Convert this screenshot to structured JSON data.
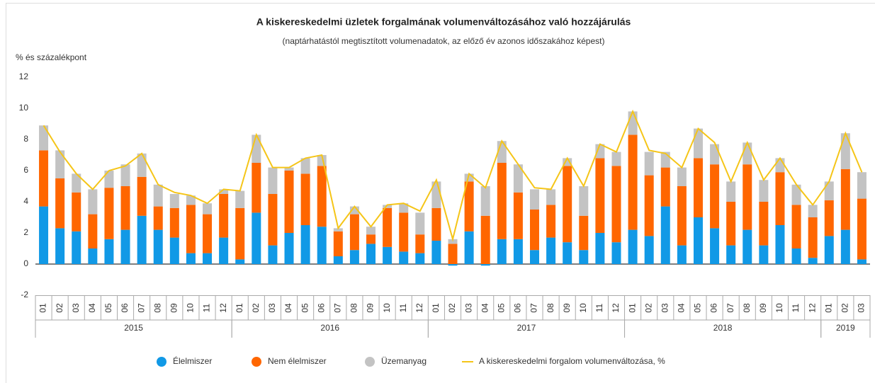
{
  "chart_data": {
    "type": "stacked-bar-line",
    "title": "A kiskereskedelmi üzletek forgalmának volumenváltozásához való hozzájárulás",
    "subtitle": "(naptárhatástól megtisztított volumenadatok, az előző év azonos időszakához képest)",
    "y_label": "% és százalékpont",
    "years": [
      {
        "label": "2015",
        "months": [
          "01",
          "02",
          "03",
          "04",
          "05",
          "06",
          "07",
          "08",
          "09",
          "10",
          "11",
          "12"
        ]
      },
      {
        "label": "2016",
        "months": [
          "01",
          "02",
          "03",
          "04",
          "05",
          "06",
          "07",
          "08",
          "09",
          "10",
          "11",
          "12"
        ]
      },
      {
        "label": "2017",
        "months": [
          "01",
          "02",
          "03",
          "04",
          "05",
          "06",
          "07",
          "08",
          "09",
          "10",
          "11",
          "12"
        ]
      },
      {
        "label": "2018",
        "months": [
          "01",
          "02",
          "03",
          "04",
          "05",
          "06",
          "07",
          "08",
          "09",
          "10",
          "11",
          "12"
        ]
      },
      {
        "label": "2019",
        "months": [
          "01",
          "02",
          "03"
        ]
      }
    ],
    "series": [
      {
        "name": "Élelmiszer",
        "color": "#1199e6",
        "values": [
          3.7,
          2.3,
          2.1,
          1.0,
          1.6,
          2.2,
          3.1,
          2.2,
          1.7,
          0.7,
          0.7,
          1.7,
          0.3,
          3.3,
          1.2,
          2.0,
          2.5,
          2.4,
          0.5,
          0.9,
          1.3,
          1.1,
          0.8,
          0.7,
          1.5,
          -0.1,
          2.1,
          -0.1,
          1.6,
          1.6,
          0.9,
          1.7,
          1.4,
          0.9,
          2.0,
          1.4,
          2.2,
          1.8,
          3.7,
          1.2,
          3.0,
          2.3,
          1.2,
          2.2,
          1.2,
          2.5,
          1.0,
          0.4,
          1.8,
          2.2,
          0.3
        ]
      },
      {
        "name": "Nem élelmiszer",
        "color": "#ff6600",
        "values": [
          3.6,
          3.2,
          2.5,
          2.2,
          3.3,
          2.8,
          2.5,
          1.5,
          1.9,
          3.1,
          2.5,
          2.8,
          3.3,
          3.2,
          3.3,
          4.0,
          3.3,
          3.9,
          1.6,
          2.3,
          0.6,
          2.5,
          2.5,
          1.2,
          2.1,
          1.3,
          3.2,
          3.1,
          4.9,
          3.0,
          2.6,
          2.1,
          4.9,
          2.2,
          4.8,
          4.9,
          6.1,
          3.9,
          2.5,
          3.8,
          3.8,
          4.1,
          2.8,
          4.2,
          2.8,
          3.4,
          2.8,
          2.6,
          2.3,
          3.9,
          3.9
        ]
      },
      {
        "name": "Üzemanyag",
        "color": "#c3c3c3",
        "values": [
          1.6,
          1.8,
          1.2,
          1.6,
          1.1,
          1.4,
          1.5,
          1.4,
          0.9,
          0.6,
          0.7,
          0.3,
          1.1,
          1.8,
          1.7,
          0.2,
          1.0,
          0.7,
          0.2,
          0.5,
          0.5,
          0.2,
          0.6,
          1.4,
          1.7,
          0.3,
          0.5,
          1.9,
          1.4,
          1.8,
          1.3,
          1.0,
          0.5,
          1.9,
          0.9,
          0.9,
          1.5,
          1.5,
          1.0,
          1.2,
          1.9,
          1.3,
          1.3,
          1.4,
          1.4,
          0.9,
          1.3,
          0.8,
          1.2,
          2.3,
          1.7
        ]
      },
      {
        "name": "A kiskereskedelmi forgalom volumenváltozása, %",
        "color": "#f5c518",
        "type": "line",
        "values": [
          8.9,
          7.2,
          5.8,
          4.8,
          6.0,
          6.3,
          7.1,
          5.1,
          4.6,
          4.4,
          3.9,
          4.8,
          4.7,
          8.3,
          6.2,
          6.2,
          6.8,
          7.0,
          2.3,
          3.7,
          2.4,
          3.8,
          3.9,
          3.4,
          5.4,
          1.6,
          5.8,
          4.9,
          7.9,
          6.4,
          4.9,
          4.8,
          6.8,
          5.0,
          7.7,
          7.2,
          9.8,
          7.3,
          7.1,
          6.2,
          8.7,
          7.8,
          5.3,
          7.8,
          5.4,
          6.8,
          5.1,
          3.8,
          5.3,
          8.4,
          5.9
        ]
      }
    ],
    "ylim": [
      -2,
      12
    ],
    "yticks": [
      -2,
      0,
      2,
      4,
      6,
      8,
      10,
      12
    ]
  }
}
